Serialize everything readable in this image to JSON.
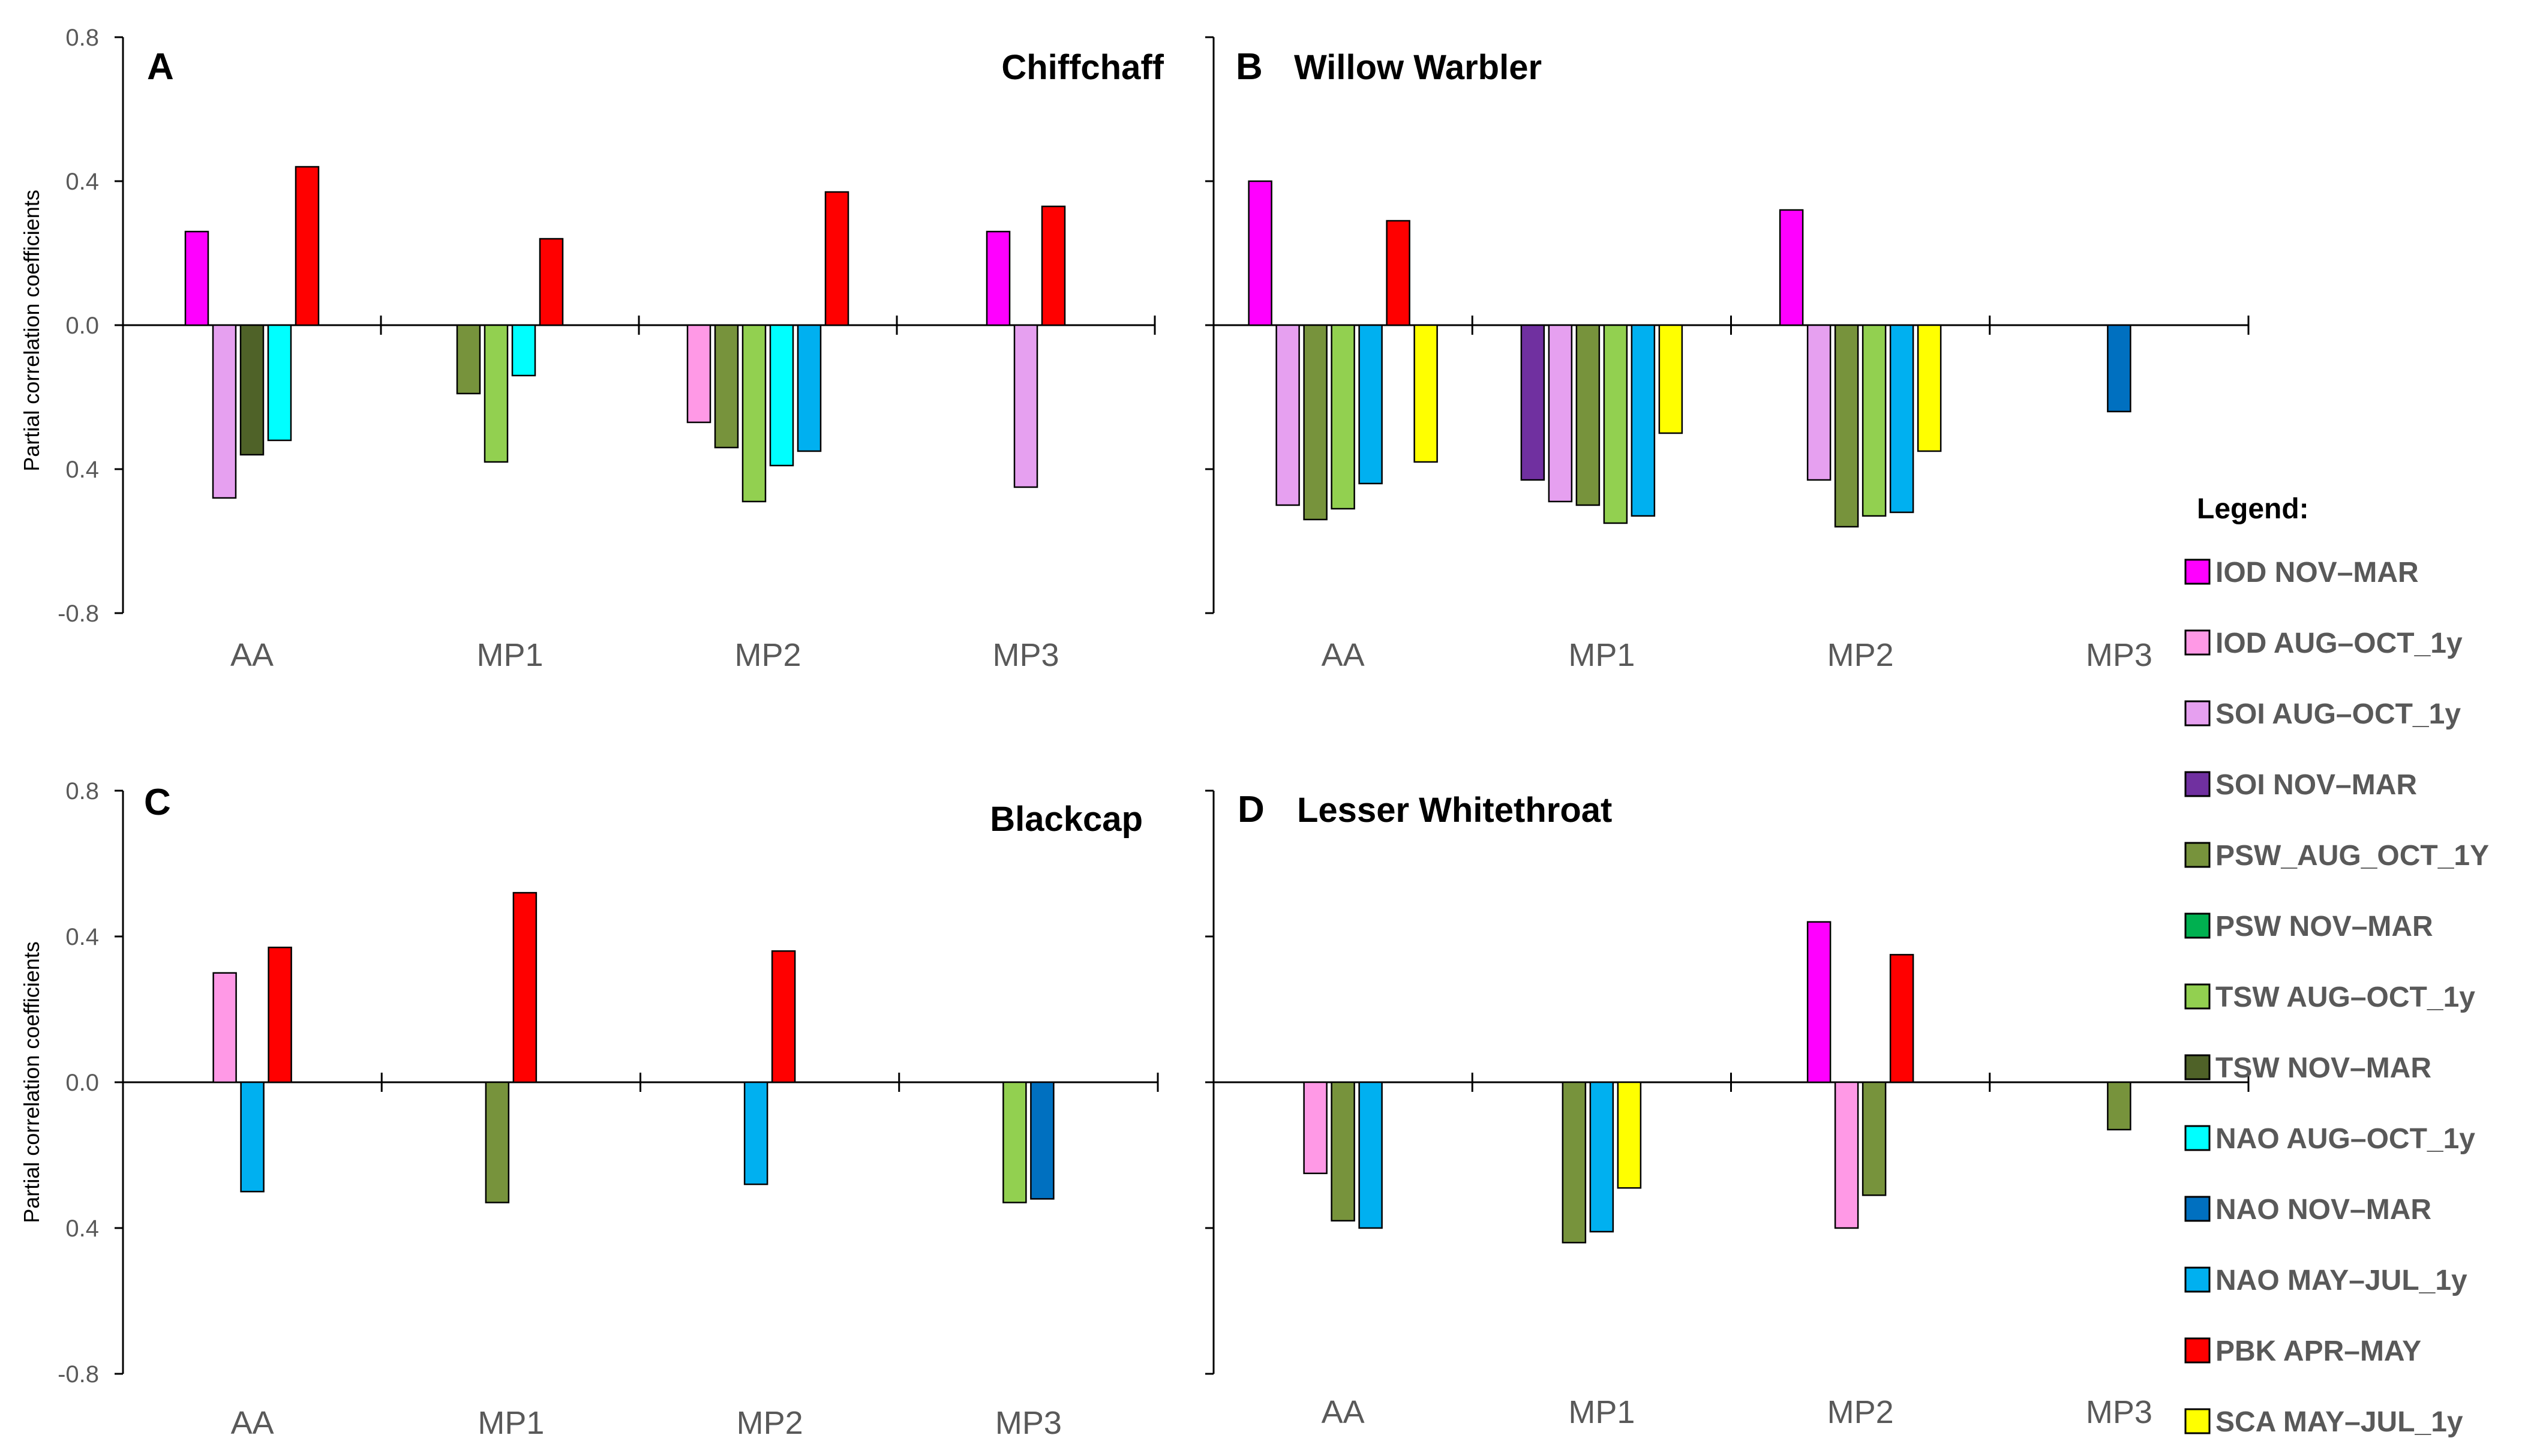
{
  "series": [
    {
      "name": "IOD NOV–MAR",
      "color": "#FF00FF"
    },
    {
      "name": "IOD AUG–OCT_1y",
      "color": "#FF99E6"
    },
    {
      "name": "SOI AUG–OCT_1y",
      "color": "#E6A0F0"
    },
    {
      "name": "SOI NOV–MAR",
      "color": "#7030A0"
    },
    {
      "name": "PSW_AUG_OCT_1Y",
      "color": "#77933C"
    },
    {
      "name": "PSW NOV–MAR",
      "color": "#00B050"
    },
    {
      "name": "TSW AUG–OCT_1y",
      "color": "#92D050"
    },
    {
      "name": "TSW NOV–MAR",
      "color": "#4F6228"
    },
    {
      "name": "NAO AUG–OCT_1y",
      "color": "#00FFFF"
    },
    {
      "name": "NAO NOV–MAR",
      "color": "#0070C0"
    },
    {
      "name": "NAO MAY–JUL_1y",
      "color": "#00B0F0"
    },
    {
      "name": "PBK APR–MAY",
      "color": "#FF0000"
    },
    {
      "name": "SCA MAY–JUL_1y",
      "color": "#FFFF00"
    }
  ],
  "legend": {
    "title": "Legend:"
  },
  "chart_data": [
    {
      "type": "bar",
      "panel": "A",
      "title": "Chiffchaff",
      "ylabel": "Partial correlation coefficients",
      "ylim": [
        -0.8,
        0.8
      ],
      "yticks": [
        "0.8",
        "0.4",
        "0.0",
        "0.4",
        "-0.8"
      ],
      "categories": [
        "AA",
        "MP1",
        "MP2",
        "MP3"
      ],
      "bars": [
        [
          {
            "s": 0,
            "v": 0.26
          },
          {
            "s": 2,
            "v": -0.48
          },
          {
            "s": 7,
            "v": -0.36
          },
          {
            "s": 8,
            "v": -0.32
          },
          {
            "s": 11,
            "v": 0.44
          }
        ],
        [
          {
            "s": 4,
            "v": -0.19
          },
          {
            "s": 6,
            "v": -0.38
          },
          {
            "s": 8,
            "v": -0.14
          },
          {
            "s": 11,
            "v": 0.24
          }
        ],
        [
          {
            "s": 1,
            "v": -0.27
          },
          {
            "s": 4,
            "v": -0.34
          },
          {
            "s": 6,
            "v": -0.49
          },
          {
            "s": 8,
            "v": -0.39
          },
          {
            "s": 10,
            "v": -0.35
          },
          {
            "s": 11,
            "v": 0.37
          }
        ],
        [
          {
            "s": 0,
            "v": 0.26
          },
          {
            "s": 2,
            "v": -0.45
          },
          {
            "s": 11,
            "v": 0.33
          }
        ]
      ]
    },
    {
      "type": "bar",
      "panel": "B",
      "title": "Willow Warbler",
      "ylabel": "",
      "ylim": [
        -0.8,
        0.8
      ],
      "yticks": [],
      "categories": [
        "AA",
        "MP1",
        "MP2",
        "MP3"
      ],
      "bars": [
        [
          {
            "s": 0,
            "v": 0.4
          },
          {
            "s": 2,
            "v": -0.5
          },
          {
            "s": 4,
            "v": -0.54
          },
          {
            "s": 6,
            "v": -0.51
          },
          {
            "s": 10,
            "v": -0.44
          },
          {
            "s": 11,
            "v": 0.29
          },
          {
            "s": 12,
            "v": -0.38
          }
        ],
        [
          {
            "s": 3,
            "v": -0.43
          },
          {
            "s": 2,
            "v": -0.49
          },
          {
            "s": 4,
            "v": -0.5
          },
          {
            "s": 6,
            "v": -0.55
          },
          {
            "s": 10,
            "v": -0.53
          },
          {
            "s": 12,
            "v": -0.3
          }
        ],
        [
          {
            "s": 0,
            "v": 0.32
          },
          {
            "s": 2,
            "v": -0.43
          },
          {
            "s": 4,
            "v": -0.56
          },
          {
            "s": 6,
            "v": -0.53
          },
          {
            "s": 10,
            "v": -0.52
          },
          {
            "s": 12,
            "v": -0.35
          }
        ],
        [
          {
            "s": 9,
            "v": -0.24
          }
        ]
      ]
    },
    {
      "type": "bar",
      "panel": "C",
      "title": "Blackcap",
      "ylabel": "Partial correlation coefficients",
      "ylim": [
        -0.8,
        0.8
      ],
      "yticks": [
        "0.8",
        "0.4",
        "0.0",
        "0.4",
        "-0.8"
      ],
      "categories": [
        "AA",
        "MP1",
        "MP2",
        "MP3"
      ],
      "bars": [
        [
          {
            "s": 1,
            "v": 0.3
          },
          {
            "s": 10,
            "v": -0.3
          },
          {
            "s": 11,
            "v": 0.37
          }
        ],
        [
          {
            "s": 4,
            "v": -0.33
          },
          {
            "s": 11,
            "v": 0.52
          }
        ],
        [
          {
            "s": 10,
            "v": -0.28
          },
          {
            "s": 11,
            "v": 0.36
          }
        ],
        [
          {
            "s": 6,
            "v": -0.33
          },
          {
            "s": 9,
            "v": -0.32
          }
        ]
      ]
    },
    {
      "type": "bar",
      "panel": "D",
      "title": "Lesser Whitethroat",
      "ylabel": "",
      "ylim": [
        -0.8,
        0.8
      ],
      "yticks": [],
      "categories": [
        "AA",
        "MP1",
        "MP2",
        "MP3"
      ],
      "bars": [
        [
          {
            "s": 1,
            "v": -0.25
          },
          {
            "s": 4,
            "v": -0.38
          },
          {
            "s": 10,
            "v": -0.4
          }
        ],
        [
          {
            "s": 4,
            "v": -0.44
          },
          {
            "s": 10,
            "v": -0.41
          },
          {
            "s": 12,
            "v": -0.29
          }
        ],
        [
          {
            "s": 0,
            "v": 0.44
          },
          {
            "s": 1,
            "v": -0.4
          },
          {
            "s": 4,
            "v": -0.31
          },
          {
            "s": 11,
            "v": 0.35
          }
        ],
        [
          {
            "s": 4,
            "v": -0.13
          }
        ]
      ]
    }
  ]
}
